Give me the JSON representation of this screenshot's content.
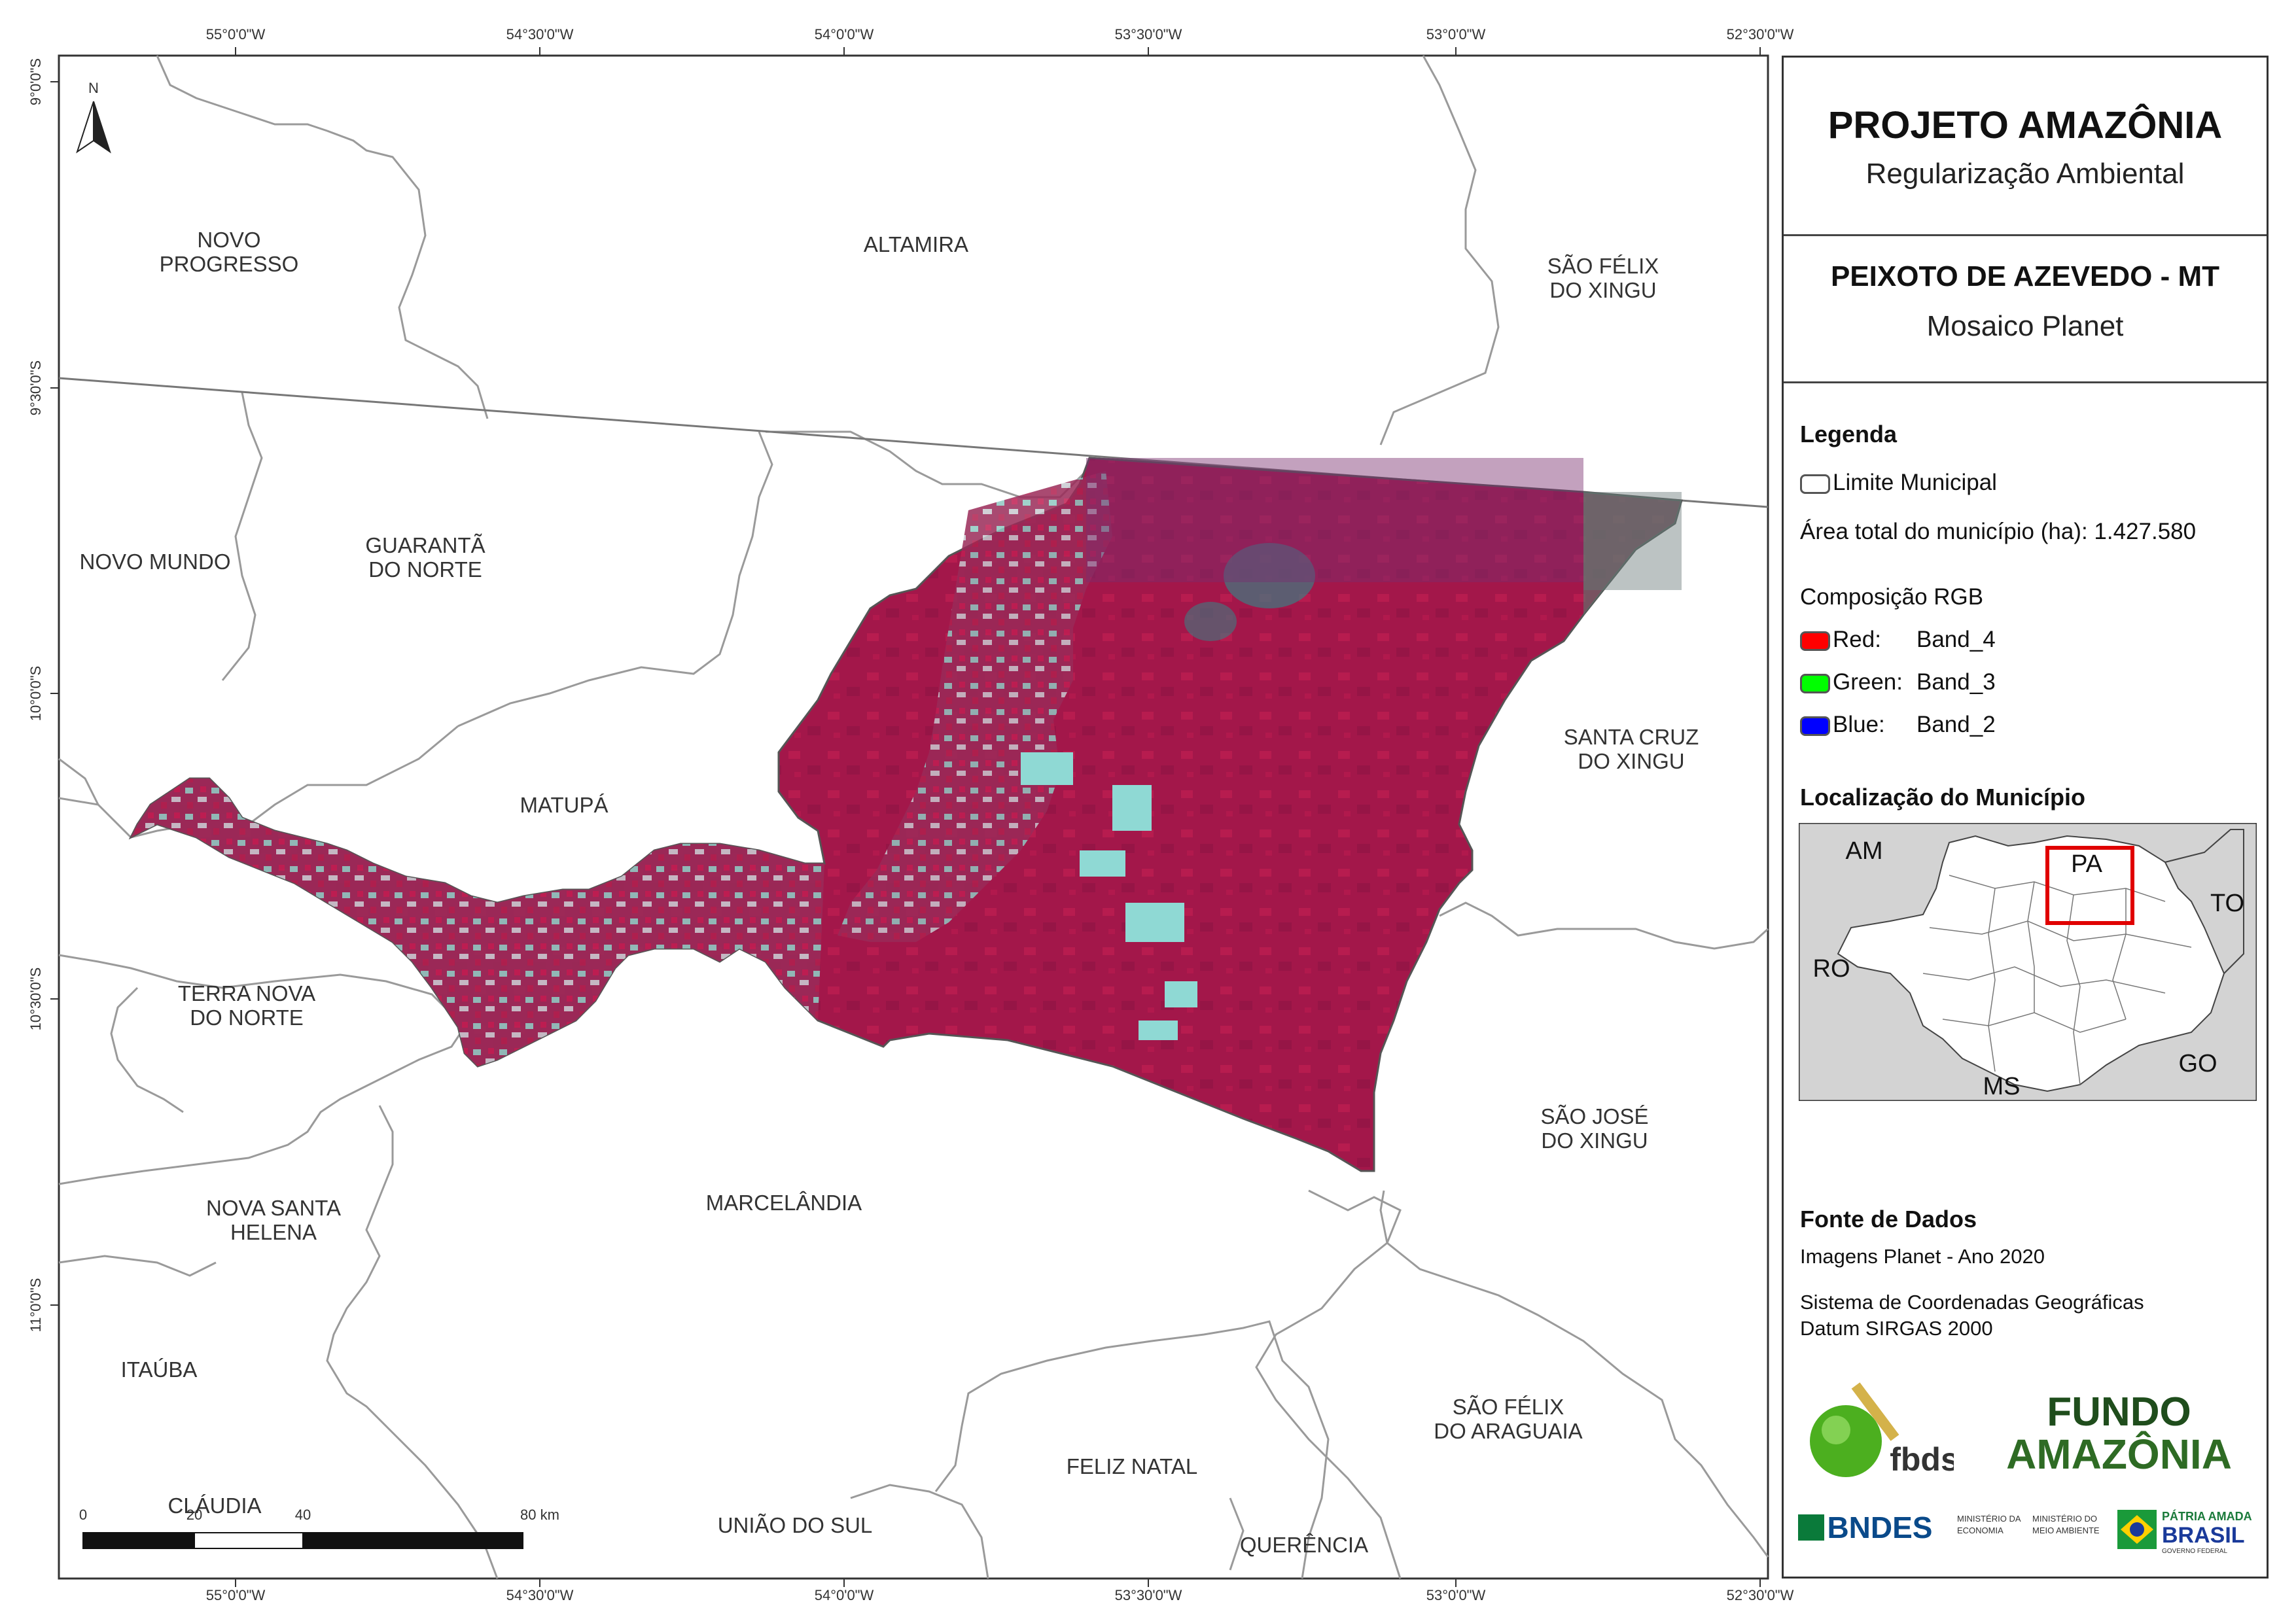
{
  "frame": {
    "top_longitudes": [
      "55°0'0\"W",
      "54°30'0\"W",
      "54°0'0\"W",
      "53°30'0\"W",
      "53°0'0\"W",
      "52°30'0\"W"
    ],
    "bottom_longitudes": [
      "55°0'0\"W",
      "54°30'0\"W",
      "54°0'0\"W",
      "53°30'0\"W",
      "53°0'0\"W",
      "52°30'0\"W"
    ],
    "left_latitudes": [
      "9°0'0\"S",
      "9°30'0\"S",
      "10°0'0\"S",
      "10°30'0\"S",
      "11°0'0\"S"
    ]
  },
  "map": {
    "north_label": "N",
    "municipalities": [
      {
        "name": "NOVO",
        "name2": "PROGRESSO"
      },
      {
        "name": "ALTAMIRA"
      },
      {
        "name": "SÃO FÉLIX",
        "name2": "DO XINGU"
      },
      {
        "name": "NOVO MUNDO"
      },
      {
        "name": "GUARANTÃ",
        "name2": "DO NORTE"
      },
      {
        "name": "SANTA CRUZ",
        "name2": "DO XINGU"
      },
      {
        "name": "MATUPÁ"
      },
      {
        "name": "TERRA NOVA",
        "name2": "DO NORTE"
      },
      {
        "name": "SÃO JOSÉ",
        "name2": "DO XINGU"
      },
      {
        "name": "NOVA SANTA",
        "name2": "HELENA"
      },
      {
        "name": "MARCELÂNDIA"
      },
      {
        "name": "ITAÚBA"
      },
      {
        "name": "SÃO FÉLIX",
        "name2": "DO ARAGUAIA"
      },
      {
        "name": "CLÁUDIA"
      },
      {
        "name": "FELIZ NATAL"
      },
      {
        "name": "UNIÃO DO SUL"
      },
      {
        "name": "QUERÊNCIA"
      }
    ],
    "scale_bar": {
      "labels": [
        "0",
        "20",
        "40",
        "80 km"
      ]
    }
  },
  "panel": {
    "title": "PROJETO AMAZÔNIA",
    "subtitle": "Regularização Ambiental",
    "municipality": "PEIXOTO DE AZEVEDO - MT",
    "product": "Mosaico Planet",
    "legend_title": "Legenda",
    "legend_limit": "Limite Municipal",
    "legend_area": "Área total do município (ha): 1.427.580",
    "rgb_title": "Composição RGB",
    "rgb": [
      {
        "label": "Red:",
        "band": "Band_4",
        "color": "#ff0000"
      },
      {
        "label": "Green:",
        "band": "Band_3",
        "color": "#00ff00"
      },
      {
        "label": "Blue:",
        "band": "Band_2",
        "color": "#0000ff"
      }
    ],
    "location_title": "Localização do Município",
    "inset_labels": [
      "AM",
      "PA",
      "TO",
      "RO",
      "GO",
      "MS"
    ],
    "sources_title": "Fonte de Dados",
    "source_images": "Imagens Planet - Ano 2020",
    "crs_line1": "Sistema de Coordenadas Geográficas",
    "crs_line2": "Datum SIRGAS 2000",
    "logos": {
      "fbds": "fbds",
      "fundo1": "FUNDO",
      "fundo2": "AMAZÔNIA",
      "bndes": "BNDES",
      "min_eco1": "MINISTÉRIO DA",
      "min_eco2": "ECONOMIA",
      "min_ma1": "MINISTÉRIO DO",
      "min_ma2": "MEIO AMBIENTE",
      "patria1": "PÁTRIA AMADA",
      "patria2": "BRASIL",
      "patria3": "GOVERNO FEDERAL"
    }
  }
}
